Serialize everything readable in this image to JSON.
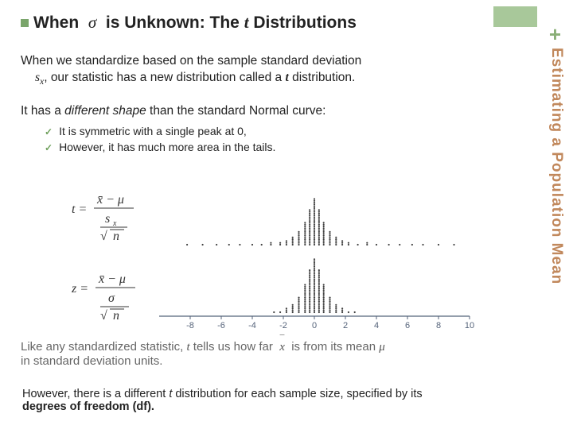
{
  "header": {
    "sidebar_label": "Estimating a Population Mean"
  },
  "title": {
    "lead": "When",
    "sigma": "σ",
    "rest_a": "is Unknown: The ",
    "ital_t": "t",
    "rest_b": " Distributions"
  },
  "para1": {
    "line1": "When we standardize based on the sample standard deviation",
    "line2_a": "s",
    "line2_sub": "x",
    "line2_b": ", our statistic has a new distribution called a ",
    "line2_t": "t",
    "line2_c": " distribution."
  },
  "para2": {
    "text_a": "It has a ",
    "ital": "different shape",
    "text_b": " than the standard Normal curve:"
  },
  "checks": {
    "items": [
      "It is symmetric with a single peak at 0,",
      "However, it has much more area in the tails."
    ]
  },
  "figure": {
    "formula_t": {
      "num_a": "x̄",
      "num_b": " − μ",
      "den_top": "s",
      "den_sub": "x",
      "den_bot": "√n",
      "lhs": "t = "
    },
    "formula_z": {
      "num_a": "x̄",
      "num_b": " − μ",
      "den_top": "σ",
      "den_bot": "√n",
      "lhs": "z = "
    },
    "ticks": [
      "-8",
      "-6",
      "-4",
      "-2",
      "0",
      "2",
      "4",
      "6",
      "8",
      "10"
    ],
    "axis_color": "#55637a",
    "dot_color": "#404040",
    "tick_font_size": 11
  },
  "bottom1": {
    "a": "Like any standardized statistic, ",
    "t": "t",
    "b": " tells us how far ",
    "x": "x",
    "c": " is from its mean ",
    "mu": "μ",
    "d": "in standard deviation units."
  },
  "bottom2": {
    "a": "However, there is a different ",
    "t": "t",
    "b": " distribution for each sample size, specified by its ",
    "bold": "degrees of freedom (df)."
  }
}
